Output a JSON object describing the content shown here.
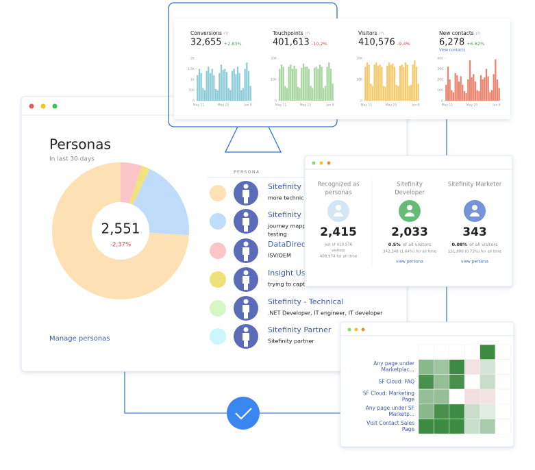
{
  "monitor": {
    "metrics": [
      {
        "label": "Conversions",
        "info": "(?)",
        "value": "32,655",
        "change": "+2.83%",
        "color": "#8ccbd8",
        "values": [
          1200,
          1500,
          1300,
          600,
          500,
          1400,
          1600,
          1300,
          1500,
          1200,
          550,
          500,
          1300,
          1700,
          1450,
          1500,
          1350,
          600,
          500,
          1400,
          1500,
          1250,
          1600,
          1300,
          500,
          600,
          1500,
          1800,
          1400,
          700
        ],
        "ylim": [
          0,
          2000
        ],
        "yticks": [
          0,
          500,
          {
            "value": 1000,
            "label": "1K"
          },
          {
            "value": 1500,
            "label": "1.5K"
          },
          {
            "value": 2000,
            "label": "2K"
          }
        ],
        "xlabels": [
          "May 11",
          "May 25",
          "Jun 8"
        ]
      },
      {
        "label": "Touchpoints",
        "info": "(?)",
        "value": "401,613",
        "change": "-10.2%",
        "color": "#a9d5a1",
        "values": [
          15000,
          17000,
          16000,
          7000,
          6000,
          16000,
          17000,
          15000,
          16500,
          15000,
          6500,
          6000,
          15500,
          17500,
          16000,
          16000,
          15000,
          7000,
          6000,
          15500,
          16000,
          15000,
          17000,
          16000,
          6000,
          7000,
          16000,
          18000,
          15000,
          8000
        ],
        "ylim": [
          0,
          20000
        ],
        "yticks": [
          0,
          {
            "value": 10000,
            "label": "10K"
          },
          {
            "value": 20000,
            "label": "20K"
          }
        ],
        "xlabels": [
          "May 11",
          "May 25",
          "Jun 8"
        ]
      },
      {
        "label": "Visitors",
        "info": "(?)",
        "value": "410,576",
        "change": "-9.4%",
        "color": "#f4ca6c",
        "values": [
          16000,
          18000,
          17000,
          8000,
          7000,
          17000,
          18000,
          16500,
          17000,
          16000,
          7000,
          6500,
          16500,
          18000,
          17000,
          17500,
          16000,
          7500,
          7000,
          16500,
          17000,
          16000,
          18000,
          17000,
          7000,
          7500,
          17000,
          19000,
          16000,
          8000
        ],
        "ylim": [
          0,
          20000
        ],
        "yticks": [
          0,
          {
            "value": 10000,
            "label": "10K"
          },
          {
            "value": 20000,
            "label": "20K"
          }
        ],
        "xlabels": [
          "May 11",
          "May 25",
          "Jun 8"
        ]
      },
      {
        "label": "New contacts",
        "info": "(?)",
        "value": "6,278",
        "change": "+6.82%",
        "link": "View contacts",
        "color": "#ef826c",
        "values": [
          150,
          320,
          200,
          100,
          80,
          260,
          240,
          180,
          230,
          150,
          90,
          70,
          200,
          380,
          220,
          250,
          180,
          100,
          90,
          240,
          200,
          220,
          300,
          230,
          80,
          100,
          250,
          390,
          200,
          120
        ],
        "ylim": [
          0,
          400
        ],
        "yticks": [
          0,
          100,
          200,
          300,
          400
        ],
        "xlabels": [
          "May 11",
          "May 25",
          "Jun 8"
        ]
      }
    ]
  },
  "personas": {
    "title": "Personas",
    "subtitle": "In last 30 days",
    "total": "2,551",
    "change": "-2,37%",
    "manage": "Manage personas",
    "segments": [
      {
        "value": 5,
        "color": "#fbc4c6"
      },
      {
        "value": 2,
        "color": "#f2e27e"
      },
      {
        "value": 19,
        "color": "#bfdcfb"
      },
      {
        "value": 74,
        "color": "#fde0b4"
      }
    ],
    "column": "PERSONA",
    "rows": [
      {
        "color": "#fde0b4",
        "name": "Sitefinity D",
        "description": [
          "more technic"
        ]
      },
      {
        "color": "#bfdcfb",
        "name": "Sitefinity M",
        "description": [
          "journey mapp",
          "testing"
        ]
      },
      {
        "color": "#fbc4c6",
        "name": "DataDirect",
        "description": [
          "ISV/OEM"
        ]
      },
      {
        "color": "#efe07a",
        "name": "Insight Use",
        "description": [
          "trying to capt"
        ]
      },
      {
        "color": "#d6f6c6",
        "name": "Sitefinity - Technical",
        "description": [
          ".NET Developer, IT engineer, IT developer"
        ]
      },
      {
        "color": "#cbf6fb",
        "name": "Sitefinity Partner",
        "description": [
          "Sitefinity partner"
        ]
      }
    ]
  },
  "recognized": {
    "columns": [
      {
        "title": [
          "Recognized as",
          "personas"
        ],
        "color": "#d3e6f3",
        "value": "2,415",
        "notes": [
          "out of 410,576",
          "visitors",
          "408,974 for all time"
        ]
      },
      {
        "title": [
          "Sitefinity",
          "Developer"
        ],
        "color": "#66bb77",
        "value": "2,033",
        "share": "0.5%",
        "share_text": "of all visitors",
        "notes": [
          "342,348 (1.64%) for all time"
        ],
        "link": "view persona"
      },
      {
        "title": [
          "Sitefinity Marketer"
        ],
        "color": "#7593d8",
        "value": "343",
        "share": "0.08%",
        "share_text": "of all visitors",
        "notes": [
          "151,800 (0.73%) for all time"
        ],
        "link": "view persona"
      }
    ]
  },
  "heatmap": {
    "labels": [
      null,
      [
        "Any page under",
        "Marketplac..."
      ],
      [
        "SF Cloud: FAQ"
      ],
      [
        "SF Cloud: Marketing",
        "Page"
      ],
      [
        "Any page under SF",
        "Marketp..."
      ],
      [
        "Visit Contact Sales",
        "Page"
      ]
    ],
    "values": [
      [
        null,
        null,
        null,
        null,
        0.9,
        null
      ],
      [
        0.55,
        0.45,
        0.9,
        -0.3,
        0.2,
        null
      ],
      [
        0.85,
        0.5,
        0.85,
        0,
        0.25,
        null
      ],
      [
        0.5,
        0.5,
        0,
        -0.35,
        -0.3,
        null
      ],
      [
        0.55,
        0.85,
        0.9,
        0.25,
        0.15,
        null
      ],
      [
        0.9,
        0.9,
        0.9,
        0.25,
        0.4,
        null
      ]
    ]
  }
}
